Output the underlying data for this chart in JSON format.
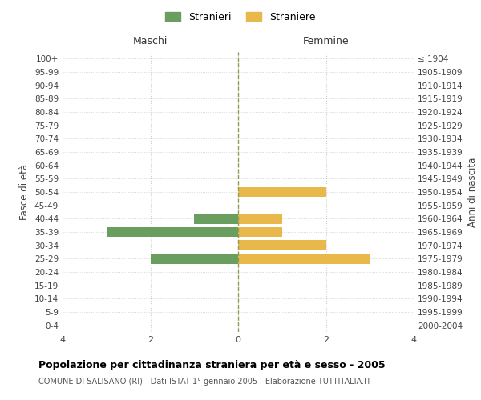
{
  "age_groups": [
    "100+",
    "95-99",
    "90-94",
    "85-89",
    "80-84",
    "75-79",
    "70-74",
    "65-69",
    "60-64",
    "55-59",
    "50-54",
    "45-49",
    "40-44",
    "35-39",
    "30-34",
    "25-29",
    "20-24",
    "15-19",
    "10-14",
    "5-9",
    "0-4"
  ],
  "birth_years": [
    "≤ 1904",
    "1905-1909",
    "1910-1914",
    "1915-1919",
    "1920-1924",
    "1925-1929",
    "1930-1934",
    "1935-1939",
    "1940-1944",
    "1945-1949",
    "1950-1954",
    "1955-1959",
    "1960-1964",
    "1965-1969",
    "1970-1974",
    "1975-1979",
    "1980-1984",
    "1985-1989",
    "1990-1994",
    "1995-1999",
    "2000-2004"
  ],
  "males": [
    0,
    0,
    0,
    0,
    0,
    0,
    0,
    0,
    0,
    0,
    0,
    0,
    1,
    3,
    0,
    2,
    0,
    0,
    0,
    0,
    0
  ],
  "females": [
    0,
    0,
    0,
    0,
    0,
    0,
    0,
    0,
    0,
    0,
    2,
    0,
    1,
    1,
    2,
    3,
    0,
    0,
    0,
    0,
    0
  ],
  "male_color": "#6a9e5f",
  "female_color": "#e8b84b",
  "xlim": 4,
  "xlabel_left": "Maschi",
  "xlabel_right": "Femmine",
  "ylabel_left": "Fasce di età",
  "ylabel_right": "Anni di nascita",
  "title": "Popolazione per cittadinanza straniera per età e sesso - 2005",
  "subtitle": "COMUNE DI SALISANO (RI) - Dati ISTAT 1° gennaio 2005 - Elaborazione TUTTITALIA.IT",
  "legend_male": "Stranieri",
  "legend_female": "Straniere",
  "bg_color": "#ffffff",
  "grid_color": "#cccccc",
  "bar_height": 0.75
}
